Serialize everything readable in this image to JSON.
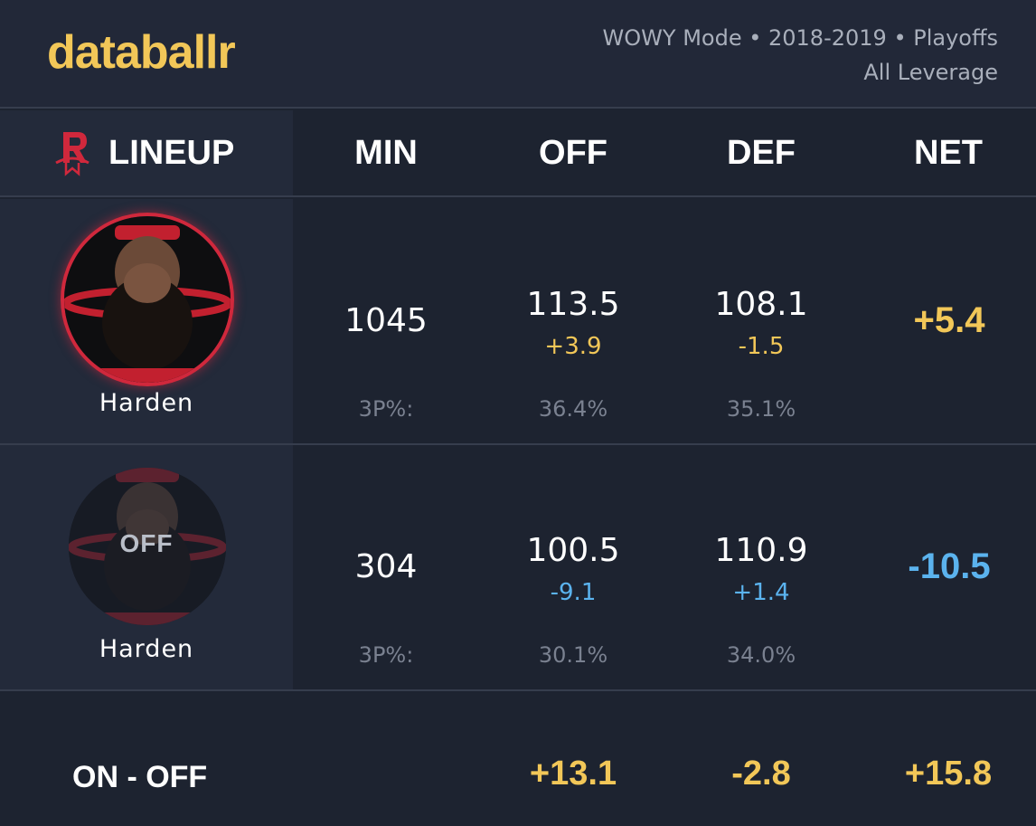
{
  "header": {
    "logo": "databallr",
    "mode_line": "WOWY Mode • 2018-2019 • Playoffs",
    "leverage": "All Leverage"
  },
  "columns": {
    "lineup": "LINEUP",
    "min": "MIN",
    "off": "OFF",
    "def": "DEF",
    "net": "NET"
  },
  "rows": [
    {
      "player": "Harden",
      "status": "on",
      "min": "1045",
      "off": "113.5",
      "off_delta": "+3.9",
      "def": "108.1",
      "def_delta": "-1.5",
      "net": "+5.4",
      "threep_label": "3P%:",
      "off_3p": "36.4%",
      "def_3p": "35.1%"
    },
    {
      "player": "Harden",
      "status": "off",
      "off_badge": "OFF",
      "min": "304",
      "off": "100.5",
      "off_delta": "-9.1",
      "def": "110.9",
      "def_delta": "+1.4",
      "net": "-10.5",
      "threep_label": "3P%:",
      "off_3p": "30.1%",
      "def_3p": "34.0%"
    }
  ],
  "summary": {
    "label": "ON - OFF",
    "off": "+13.1",
    "def": "-2.8",
    "net": "+15.8"
  },
  "colors": {
    "accent_gold": "#f2c758",
    "accent_blue": "#5bb3ee",
    "rockets_red": "#d0283c",
    "background": "#1d2330"
  },
  "icons": {
    "team_logo": "rockets-logo-icon"
  }
}
